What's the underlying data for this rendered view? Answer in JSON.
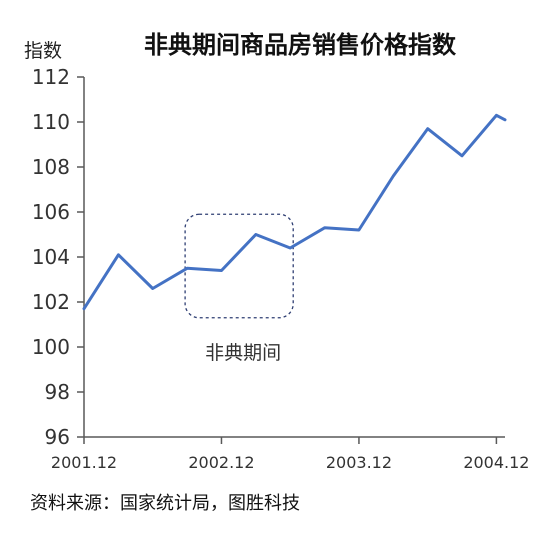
{
  "chart_data": {
    "type": "line",
    "title": "非典期间商品房销售价格指数",
    "ylabel": "指数",
    "xlabel": "",
    "ylim": [
      96,
      112
    ],
    "yticks": [
      96,
      98,
      100,
      102,
      104,
      106,
      108,
      110,
      112
    ],
    "x_tick_labels": [
      "2001.12",
      "2002.12",
      "2003.12",
      "2004.12"
    ],
    "x_tick_positions": [
      0,
      4,
      8,
      12
    ],
    "x_count": 13,
    "grid": false,
    "legend": "none",
    "series": [
      {
        "values": [
          101.7,
          104.1,
          102.6,
          103.5,
          103.4,
          105.0,
          104.4,
          105.3,
          105.2,
          107.6,
          109.7,
          108.5,
          110.3,
          110.1
        ],
        "x": [
          0,
          1,
          2,
          3,
          4,
          5,
          6,
          7,
          8,
          9,
          10,
          11,
          12,
          12.25
        ],
        "color": "#4472C4"
      }
    ],
    "annotations": [
      {
        "text": "非典期间",
        "x_from": 3,
        "x_to": 6,
        "y_from": 101.3,
        "y_to": 105.9,
        "style": "dashed rounded box"
      }
    ]
  },
  "source": "资料来源：国家统计局，图胜科技",
  "colors": {
    "line": "#4472C4",
    "annotation_box": "#2F3F73",
    "axis": "#595959"
  }
}
